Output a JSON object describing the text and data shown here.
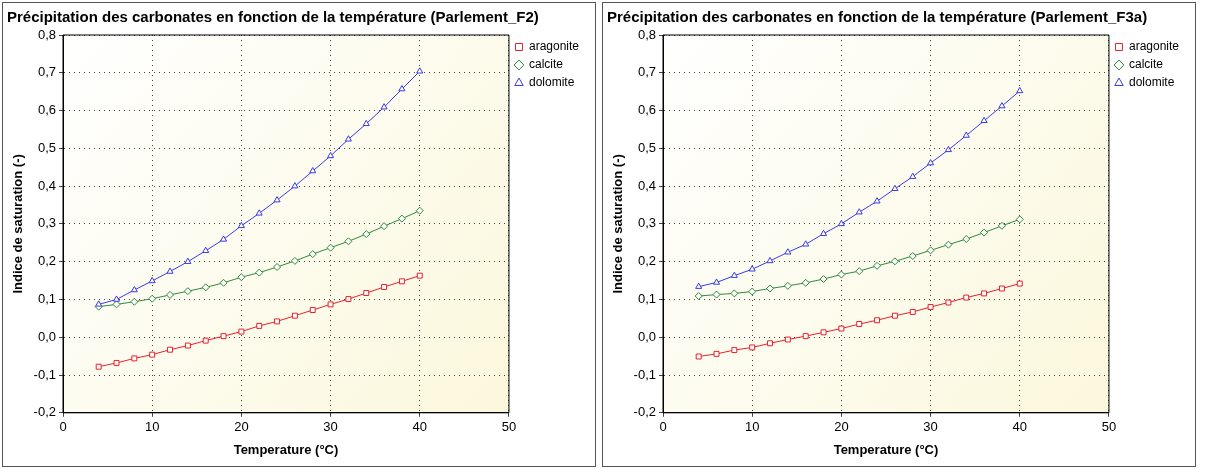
{
  "chart_data": [
    {
      "type": "line",
      "title": "Précipitation des carbonates en fonction de la température (Parlement_F2)",
      "xlabel": "Temperature (°C)",
      "ylabel": "Indice de saturation (-)",
      "x": [
        4,
        6,
        8,
        10,
        12,
        14,
        16,
        18,
        20,
        22,
        24,
        26,
        28,
        30,
        32,
        34,
        36,
        38,
        40
      ],
      "series": [
        {
          "name": "aragonite",
          "color": "#e8202a",
          "marker": "square",
          "values": [
            -0.078,
            -0.068,
            -0.056,
            -0.046,
            -0.033,
            -0.022,
            -0.009,
            0.003,
            0.015,
            0.03,
            0.042,
            0.057,
            0.072,
            0.087,
            0.101,
            0.117,
            0.133,
            0.148,
            0.163
          ]
        },
        {
          "name": "calcite",
          "color": "#2e8b3a",
          "marker": "diamond",
          "values": [
            0.081,
            0.087,
            0.094,
            0.102,
            0.112,
            0.122,
            0.132,
            0.144,
            0.159,
            0.171,
            0.186,
            0.202,
            0.22,
            0.237,
            0.254,
            0.273,
            0.294,
            0.314,
            0.335
          ]
        },
        {
          "name": "dolomite",
          "color": "#3a3ae8",
          "marker": "triangle",
          "values": [
            0.087,
            0.1,
            0.125,
            0.149,
            0.174,
            0.2,
            0.229,
            0.259,
            0.295,
            0.328,
            0.363,
            0.4,
            0.44,
            0.48,
            0.524,
            0.565,
            0.609,
            0.657,
            0.704
          ]
        }
      ],
      "xlim": [
        0,
        50
      ],
      "xticks": [
        0,
        10,
        20,
        30,
        40,
        50
      ],
      "ylim": [
        -0.2,
        0.8
      ],
      "yticks": [
        {
          "value": -0.2,
          "label": "-0,2"
        },
        {
          "value": -0.1,
          "label": "-0,1"
        },
        {
          "value": 0,
          "label": "0,0"
        },
        {
          "value": 0.1,
          "label": "0,1"
        },
        {
          "value": 0.2,
          "label": "0,2"
        },
        {
          "value": 0.3,
          "label": "0,3"
        },
        {
          "value": 0.4,
          "label": "0,4"
        },
        {
          "value": 0.5,
          "label": "0,5"
        },
        {
          "value": 0.6,
          "label": "0,6"
        },
        {
          "value": 0.7,
          "label": "0,7"
        },
        {
          "value": 0.8,
          "label": "0,8"
        }
      ],
      "grid": true,
      "line_style": "solid",
      "legend": "top right"
    },
    {
      "type": "line",
      "title": "Précipitation des carbonates en fonction de la température (Parlement_F3a)",
      "xlabel": "Temperature (°C)",
      "ylabel": "Indice de saturation (-)",
      "x": [
        4,
        6,
        8,
        10,
        12,
        14,
        16,
        18,
        20,
        22,
        24,
        26,
        28,
        30,
        32,
        34,
        36,
        38,
        40
      ],
      "series": [
        {
          "name": "aragonite",
          "color": "#e8202a",
          "marker": "square",
          "values": [
            -0.051,
            -0.044,
            -0.034,
            -0.027,
            -0.016,
            -0.006,
            0.003,
            0.013,
            0.023,
            0.035,
            0.045,
            0.057,
            0.067,
            0.08,
            0.092,
            0.105,
            0.116,
            0.129,
            0.142
          ]
        },
        {
          "name": "calcite",
          "color": "#2e8b3a",
          "marker": "diamond",
          "values": [
            0.109,
            0.113,
            0.116,
            0.121,
            0.129,
            0.136,
            0.144,
            0.154,
            0.166,
            0.175,
            0.189,
            0.201,
            0.215,
            0.23,
            0.245,
            0.26,
            0.277,
            0.295,
            0.312
          ]
        },
        {
          "name": "dolomite",
          "color": "#3a3ae8",
          "marker": "triangle",
          "values": [
            0.134,
            0.145,
            0.163,
            0.18,
            0.202,
            0.225,
            0.246,
            0.274,
            0.3,
            0.331,
            0.36,
            0.393,
            0.425,
            0.461,
            0.496,
            0.534,
            0.573,
            0.612,
            0.652
          ]
        }
      ],
      "xlim": [
        0,
        50
      ],
      "xticks": [
        0,
        10,
        20,
        30,
        40,
        50
      ],
      "ylim": [
        -0.2,
        0.8
      ],
      "yticks": [
        {
          "value": -0.2,
          "label": "-0,2"
        },
        {
          "value": -0.1,
          "label": "-0,1"
        },
        {
          "value": 0,
          "label": "0,0"
        },
        {
          "value": 0.1,
          "label": "0,1"
        },
        {
          "value": 0.2,
          "label": "0,2"
        },
        {
          "value": 0.3,
          "label": "0,3"
        },
        {
          "value": 0.4,
          "label": "0,4"
        },
        {
          "value": 0.5,
          "label": "0,5"
        },
        {
          "value": 0.6,
          "label": "0,6"
        },
        {
          "value": 0.7,
          "label": "0,7"
        },
        {
          "value": 0.8,
          "label": "0,8"
        }
      ],
      "grid": true,
      "line_style": "solid",
      "legend": "top right"
    }
  ]
}
